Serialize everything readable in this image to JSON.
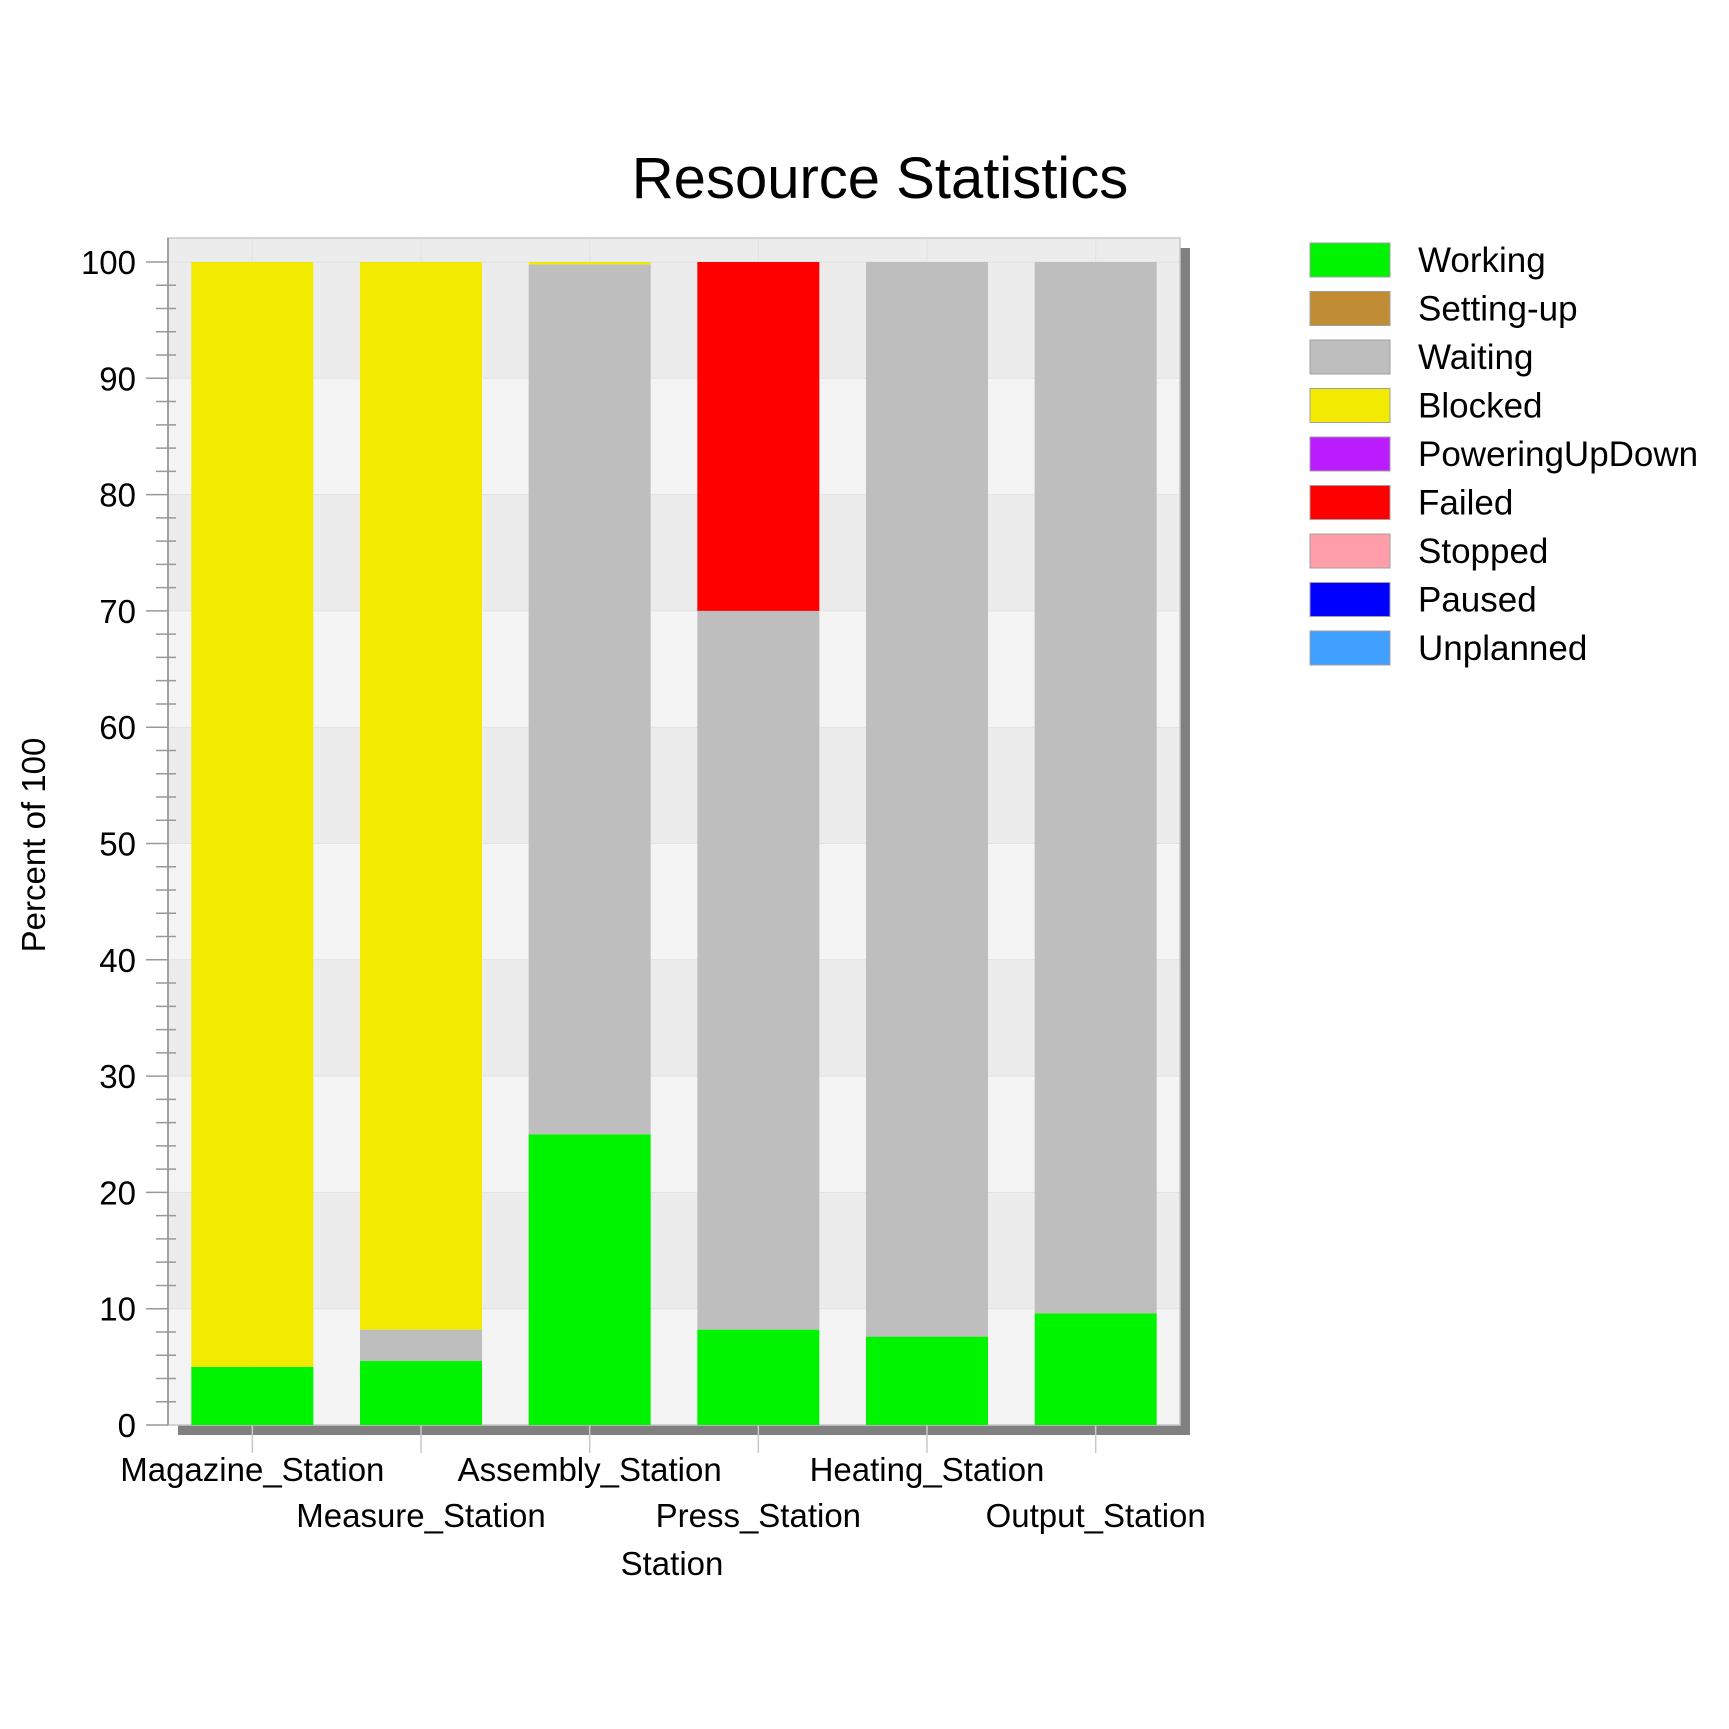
{
  "chart_data": {
    "type": "bar",
    "stacked": true,
    "title": "Resource Statistics",
    "xlabel": "Station",
    "ylabel": "Percent of 100",
    "ylim": [
      0,
      100
    ],
    "yticks": [
      "0",
      "10",
      "20",
      "30",
      "40",
      "50",
      "60",
      "70",
      "80",
      "90",
      "100"
    ],
    "grid": true,
    "legend_position": "right",
    "categories": [
      "Magazine_Station",
      "Measure_Station",
      "Assembly_Station",
      "Press_Station",
      "Heating_Station",
      "Output_Station"
    ],
    "series": [
      {
        "name": "Working",
        "color": "#00f400",
        "values": [
          5.0,
          5.5,
          25.0,
          8.2,
          7.6,
          9.6
        ]
      },
      {
        "name": "Setting-up",
        "color": "#c08c34",
        "values": [
          0,
          0,
          0,
          0,
          0,
          0
        ]
      },
      {
        "name": "Waiting",
        "color": "#bebebe",
        "values": [
          0,
          2.7,
          74.8,
          61.8,
          92.4,
          90.4
        ]
      },
      {
        "name": "Blocked",
        "color": "#f2ea00",
        "values": [
          95.0,
          91.8,
          0.2,
          0,
          0,
          0
        ]
      },
      {
        "name": "PoweringUpDown",
        "color": "#bb1cff",
        "values": [
          0,
          0,
          0,
          0,
          0,
          0
        ]
      },
      {
        "name": "Failed",
        "color": "#ff0000",
        "values": [
          0,
          0,
          0,
          30.0,
          0,
          0
        ]
      },
      {
        "name": "Stopped",
        "color": "#ff9ea8",
        "values": [
          0,
          0,
          0,
          0,
          0,
          0
        ]
      },
      {
        "name": "Paused",
        "color": "#0000ff",
        "values": [
          0,
          0,
          0,
          0,
          0,
          0
        ]
      },
      {
        "name": "Unplanned",
        "color": "#40a0ff",
        "values": [
          0,
          0,
          0,
          0,
          0,
          0
        ]
      }
    ]
  }
}
